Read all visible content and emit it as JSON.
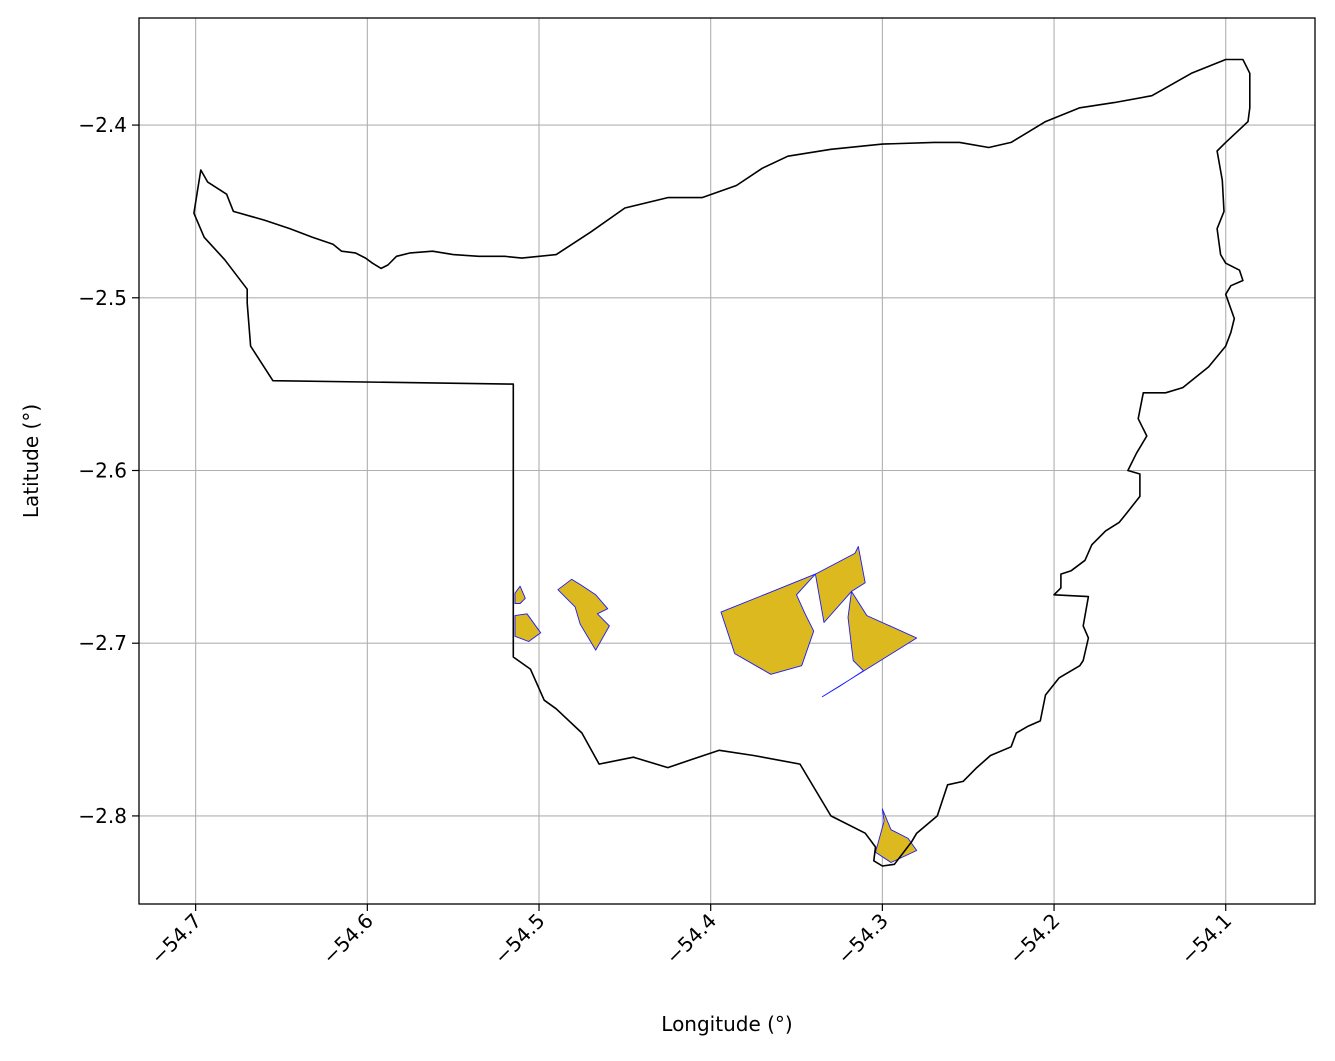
{
  "chart_data": {
    "type": "map",
    "xlabel": "Longitude (°)",
    "ylabel": "Latitude (°)",
    "xlim": [
      -54.733,
      -54.048
    ],
    "ylim": [
      -2.851,
      -2.338
    ],
    "x_ticks": [
      {
        "value": -54.7,
        "label": "−54.7"
      },
      {
        "value": -54.6,
        "label": "−54.6"
      },
      {
        "value": -54.5,
        "label": "−54.5"
      },
      {
        "value": -54.4,
        "label": "−54.4"
      },
      {
        "value": -54.3,
        "label": "−54.3"
      },
      {
        "value": -54.2,
        "label": "−54.2"
      },
      {
        "value": -54.1,
        "label": "−54.1"
      }
    ],
    "y_ticks": [
      {
        "value": -2.4,
        "label": "−2.4"
      },
      {
        "value": -2.5,
        "label": "−2.5"
      },
      {
        "value": -2.6,
        "label": "−2.6"
      },
      {
        "value": -2.7,
        "label": "−2.7"
      },
      {
        "value": -2.8,
        "label": "−2.8"
      }
    ],
    "grid": true,
    "colors": {
      "boundary": "#000000",
      "patch_fill": "#dbb91f",
      "patch_edge": "#1a1aff",
      "grid": "#b0b0b0"
    },
    "boundary": [
      [
        -54.701,
        -2.451
      ],
      [
        -54.697,
        -2.426
      ],
      [
        -54.693,
        -2.433
      ],
      [
        -54.682,
        -2.44
      ],
      [
        -54.678,
        -2.45
      ],
      [
        -54.66,
        -2.455
      ],
      [
        -54.645,
        -2.46
      ],
      [
        -54.632,
        -2.465
      ],
      [
        -54.62,
        -2.469
      ],
      [
        -54.615,
        -2.473
      ],
      [
        -54.607,
        -2.474
      ],
      [
        -54.601,
        -2.477
      ],
      [
        -54.597,
        -2.48
      ],
      [
        -54.592,
        -2.483
      ],
      [
        -54.588,
        -2.481
      ],
      [
        -54.583,
        -2.476
      ],
      [
        -54.575,
        -2.474
      ],
      [
        -54.562,
        -2.473
      ],
      [
        -54.55,
        -2.475
      ],
      [
        -54.535,
        -2.476
      ],
      [
        -54.52,
        -2.476
      ],
      [
        -54.51,
        -2.477
      ],
      [
        -54.49,
        -2.475
      ],
      [
        -54.47,
        -2.462
      ],
      [
        -54.45,
        -2.448
      ],
      [
        -54.425,
        -2.442
      ],
      [
        -54.405,
        -2.442
      ],
      [
        -54.385,
        -2.435
      ],
      [
        -54.37,
        -2.425
      ],
      [
        -54.355,
        -2.418
      ],
      [
        -54.33,
        -2.414
      ],
      [
        -54.3,
        -2.411
      ],
      [
        -54.27,
        -2.41
      ],
      [
        -54.255,
        -2.41
      ],
      [
        -54.238,
        -2.413
      ],
      [
        -54.225,
        -2.41
      ],
      [
        -54.205,
        -2.398
      ],
      [
        -54.185,
        -2.39
      ],
      [
        -54.165,
        -2.387
      ],
      [
        -54.143,
        -2.383
      ],
      [
        -54.12,
        -2.37
      ],
      [
        -54.1,
        -2.362
      ],
      [
        -54.09,
        -2.362
      ],
      [
        -54.086,
        -2.37
      ],
      [
        -54.086,
        -2.39
      ],
      [
        -54.087,
        -2.398
      ],
      [
        -54.1,
        -2.41
      ],
      [
        -54.105,
        -2.415
      ],
      [
        -54.102,
        -2.432
      ],
      [
        -54.101,
        -2.45
      ],
      [
        -54.105,
        -2.46
      ],
      [
        -54.103,
        -2.475
      ],
      [
        -54.1,
        -2.48
      ],
      [
        -54.092,
        -2.484
      ],
      [
        -54.09,
        -2.49
      ],
      [
        -54.097,
        -2.493
      ],
      [
        -54.1,
        -2.498
      ],
      [
        -54.095,
        -2.512
      ],
      [
        -54.097,
        -2.52
      ],
      [
        -54.1,
        -2.528
      ],
      [
        -54.11,
        -2.54
      ],
      [
        -54.125,
        -2.552
      ],
      [
        -54.135,
        -2.555
      ],
      [
        -54.148,
        -2.555
      ],
      [
        -54.151,
        -2.57
      ],
      [
        -54.146,
        -2.58
      ],
      [
        -54.152,
        -2.59
      ],
      [
        -54.157,
        -2.6
      ],
      [
        -54.15,
        -2.602
      ],
      [
        -54.15,
        -2.615
      ],
      [
        -54.158,
        -2.625
      ],
      [
        -54.162,
        -2.63
      ],
      [
        -54.17,
        -2.635
      ],
      [
        -54.178,
        -2.643
      ],
      [
        -54.182,
        -2.652
      ],
      [
        -54.19,
        -2.658
      ],
      [
        -54.196,
        -2.66
      ],
      [
        -54.196,
        -2.668
      ],
      [
        -54.2,
        -2.672
      ],
      [
        -54.18,
        -2.673
      ],
      [
        -54.183,
        -2.69
      ],
      [
        -54.18,
        -2.697
      ],
      [
        -54.183,
        -2.71
      ],
      [
        -54.185,
        -2.713
      ],
      [
        -54.197,
        -2.72
      ],
      [
        -54.205,
        -2.73
      ],
      [
        -54.208,
        -2.745
      ],
      [
        -54.215,
        -2.748
      ],
      [
        -54.222,
        -2.752
      ],
      [
        -54.225,
        -2.76
      ],
      [
        -54.237,
        -2.765
      ],
      [
        -54.245,
        -2.772
      ],
      [
        -54.253,
        -2.78
      ],
      [
        -54.262,
        -2.782
      ],
      [
        -54.268,
        -2.8
      ],
      [
        -54.28,
        -2.81
      ],
      [
        -54.283,
        -2.815
      ],
      [
        -54.293,
        -2.828
      ],
      [
        -54.3,
        -2.829
      ],
      [
        -54.305,
        -2.826
      ],
      [
        -54.304,
        -2.818
      ],
      [
        -54.31,
        -2.81
      ],
      [
        -54.33,
        -2.8
      ],
      [
        -54.348,
        -2.77
      ],
      [
        -54.375,
        -2.765
      ],
      [
        -54.395,
        -2.762
      ],
      [
        -54.41,
        -2.767
      ],
      [
        -54.425,
        -2.772
      ],
      [
        -54.445,
        -2.766
      ],
      [
        -54.465,
        -2.77
      ],
      [
        -54.475,
        -2.752
      ],
      [
        -54.49,
        -2.738
      ],
      [
        -54.497,
        -2.733
      ],
      [
        -54.505,
        -2.715
      ],
      [
        -54.515,
        -2.708
      ],
      [
        -54.515,
        -2.55
      ],
      [
        -54.655,
        -2.548
      ],
      [
        -54.668,
        -2.528
      ],
      [
        -54.67,
        -2.503
      ],
      [
        -54.67,
        -2.495
      ],
      [
        -54.683,
        -2.478
      ],
      [
        -54.695,
        -2.465
      ],
      [
        -54.701,
        -2.451
      ]
    ],
    "patches": [
      [
        [
          -54.514,
          -2.671
        ],
        [
          -54.511,
          -2.667
        ],
        [
          -54.508,
          -2.674
        ],
        [
          -54.511,
          -2.677
        ],
        [
          -54.514,
          -2.677
        ]
      ],
      [
        [
          -54.514,
          -2.684
        ],
        [
          -54.507,
          -2.683
        ],
        [
          -54.499,
          -2.694
        ],
        [
          -54.506,
          -2.699
        ],
        [
          -54.514,
          -2.696
        ]
      ],
      [
        [
          -54.489,
          -2.669
        ],
        [
          -54.481,
          -2.663
        ],
        [
          -54.476,
          -2.666
        ],
        [
          -54.467,
          -2.672
        ],
        [
          -54.46,
          -2.68
        ],
        [
          -54.466,
          -2.683
        ],
        [
          -54.459,
          -2.69
        ],
        [
          -54.467,
          -2.704
        ],
        [
          -54.476,
          -2.689
        ],
        [
          -54.479,
          -2.679
        ]
      ],
      [
        [
          -54.394,
          -2.682
        ],
        [
          -54.339,
          -2.66
        ],
        [
          -54.35,
          -2.672
        ],
        [
          -54.345,
          -2.683
        ],
        [
          -54.34,
          -2.693
        ],
        [
          -54.347,
          -2.713
        ],
        [
          -54.365,
          -2.718
        ],
        [
          -54.386,
          -2.706
        ]
      ],
      [
        [
          -54.339,
          -2.66
        ],
        [
          -54.316,
          -2.648
        ],
        [
          -54.314,
          -2.644
        ],
        [
          -54.31,
          -2.665
        ],
        [
          -54.318,
          -2.67
        ],
        [
          -54.334,
          -2.688
        ]
      ],
      [
        [
          -54.318,
          -2.67
        ],
        [
          -54.32,
          -2.685
        ],
        [
          -54.317,
          -2.71
        ],
        [
          -54.311,
          -2.716
        ],
        [
          -54.325,
          -2.725
        ],
        [
          -54.335,
          -2.731
        ],
        [
          -54.28,
          -2.697
        ],
        [
          -54.309,
          -2.684
        ]
      ],
      [
        [
          -54.3,
          -2.796
        ],
        [
          -54.295,
          -2.808
        ],
        [
          -54.285,
          -2.813
        ],
        [
          -54.28,
          -2.82
        ],
        [
          -54.295,
          -2.827
        ],
        [
          -54.304,
          -2.821
        ],
        [
          -54.299,
          -2.803
        ]
      ]
    ]
  }
}
